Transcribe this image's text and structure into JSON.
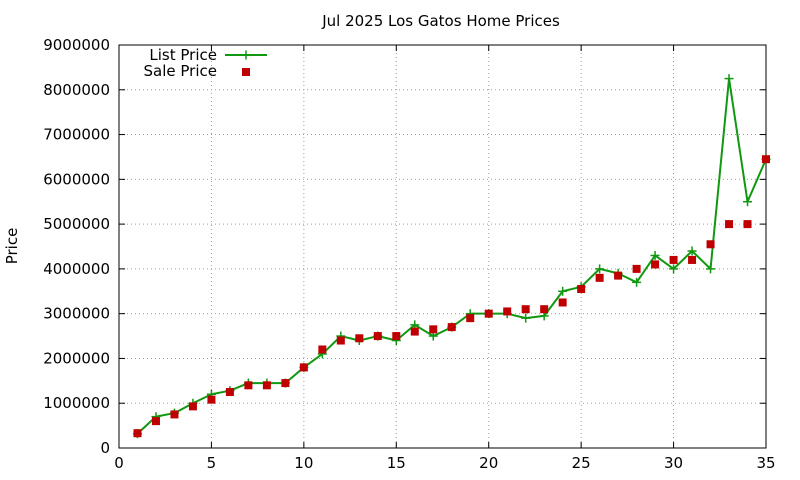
{
  "chart_data": {
    "type": "line",
    "title": "Jul 2025 Los Gatos Home Prices",
    "xlabel": "",
    "ylabel": "Price",
    "xlim": [
      0,
      35
    ],
    "ylim": [
      0,
      9000000
    ],
    "xticks": [
      0,
      5,
      10,
      15,
      20,
      25,
      30,
      35
    ],
    "yticks": [
      0,
      1000000,
      2000000,
      3000000,
      4000000,
      5000000,
      6000000,
      7000000,
      8000000,
      9000000
    ],
    "grid": true,
    "legend": "top-left",
    "series": [
      {
        "name": "List Price",
        "style": "line-plus",
        "color": "#109910",
        "x": [
          1,
          2,
          3,
          4,
          5,
          6,
          7,
          8,
          9,
          10,
          11,
          12,
          13,
          14,
          15,
          16,
          17,
          18,
          19,
          20,
          21,
          22,
          23,
          24,
          25,
          26,
          27,
          28,
          29,
          30,
          31,
          32,
          33,
          34,
          35
        ],
        "values": [
          320000,
          700000,
          780000,
          1000000,
          1200000,
          1280000,
          1450000,
          1450000,
          1450000,
          1800000,
          2100000,
          2500000,
          2400000,
          2500000,
          2400000,
          2750000,
          2500000,
          2700000,
          3000000,
          3000000,
          3000000,
          2900000,
          2950000,
          3500000,
          3600000,
          4000000,
          3900000,
          3700000,
          4300000,
          4000000,
          4400000,
          4000000,
          8250000,
          5500000,
          6450000
        ]
      },
      {
        "name": "Sale Price",
        "style": "square",
        "color": "#c00000",
        "x": [
          1,
          2,
          3,
          4,
          5,
          6,
          7,
          8,
          9,
          10,
          11,
          12,
          13,
          14,
          15,
          16,
          17,
          18,
          19,
          20,
          21,
          22,
          23,
          24,
          25,
          26,
          27,
          28,
          29,
          30,
          31,
          32,
          33,
          34,
          35
        ],
        "values": [
          330000,
          600000,
          750000,
          930000,
          1080000,
          1250000,
          1400000,
          1400000,
          1450000,
          1800000,
          2200000,
          2400000,
          2450000,
          2500000,
          2500000,
          2600000,
          2650000,
          2700000,
          2900000,
          3000000,
          3050000,
          3100000,
          3100000,
          3250000,
          3550000,
          3800000,
          3850000,
          4000000,
          4100000,
          4200000,
          4200000,
          4550000,
          5000000,
          5000000,
          6450000
        ]
      }
    ]
  }
}
